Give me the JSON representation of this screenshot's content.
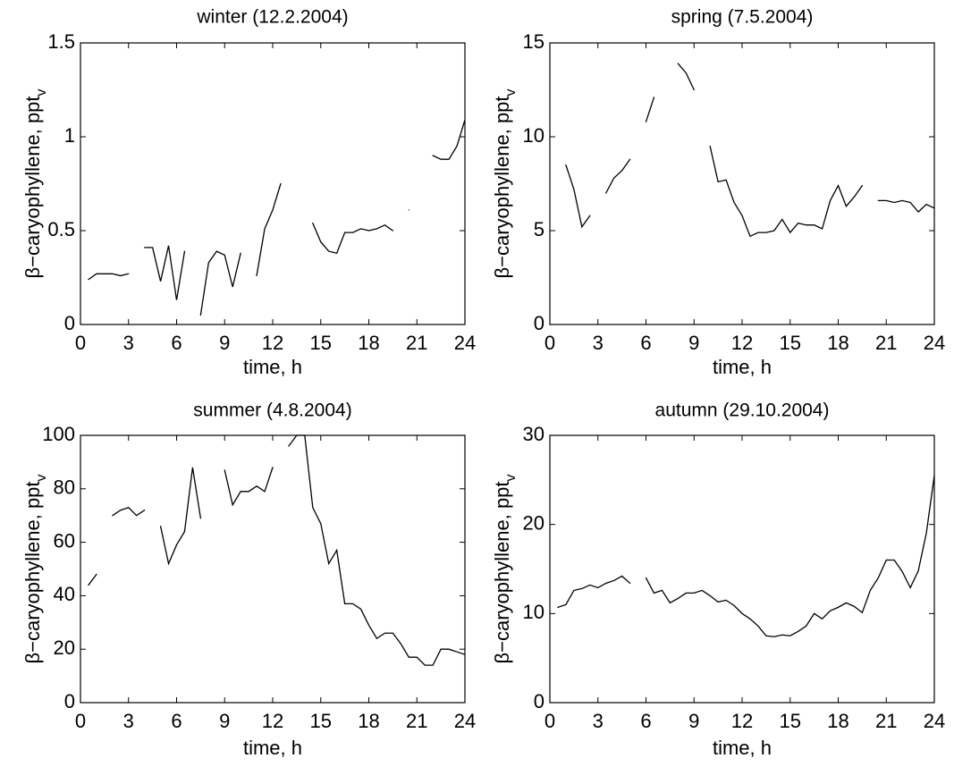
{
  "chart_data": [
    {
      "type": "line",
      "title": "winter (12.2.2004)",
      "x_label": "time, h",
      "y_label": "β−caryophyllene, ppt",
      "y_label_sub": "v",
      "x": [
        0.5,
        1,
        1.5,
        2,
        2.5,
        3,
        3.5,
        4,
        4.5,
        5,
        5.5,
        6,
        6.5,
        7,
        7.5,
        8,
        8.5,
        9,
        9.5,
        10,
        10.5,
        11,
        11.5,
        12,
        12.5,
        13,
        13.5,
        14,
        14.5,
        15,
        15.5,
        16,
        16.5,
        17,
        17.5,
        18,
        18.5,
        19,
        19.5,
        20,
        20.5,
        21,
        21.5,
        22,
        22.5,
        23,
        23.5,
        24
      ],
      "series": [
        {
          "color": "#000000",
          "values": [
            0.24,
            0.27,
            0.27,
            0.27,
            0.26,
            0.27,
            null,
            0.41,
            0.41,
            0.23,
            0.42,
            0.13,
            0.39,
            null,
            0.05,
            0.33,
            0.39,
            0.37,
            0.2,
            0.38,
            null,
            0.26,
            0.51,
            0.61,
            0.75,
            null,
            null,
            null,
            0.54,
            0.44,
            0.39,
            0.38,
            0.49,
            0.49,
            0.51,
            0.5,
            0.51,
            0.53,
            0.5,
            null,
            0.61,
            null,
            null,
            0.9,
            0.88,
            0.88,
            0.95,
            1.09
          ]
        }
      ],
      "xlim": [
        0,
        24
      ],
      "xticks": [
        0,
        3,
        6,
        9,
        12,
        15,
        18,
        21,
        24
      ],
      "ylim": [
        0,
        1.5
      ],
      "yticks": [
        0,
        0.5,
        1,
        1.5
      ]
    },
    {
      "type": "line",
      "title": "spring (7.5.2004)",
      "x_label": "time, h",
      "y_label": "β−caryophyllene, ppt",
      "y_label_sub": "v",
      "x": [
        0.5,
        1,
        1.5,
        2,
        2.5,
        3,
        3.5,
        4,
        4.5,
        5,
        5.5,
        6,
        6.5,
        7,
        7.5,
        8,
        8.5,
        9,
        9.5,
        10,
        10.5,
        11,
        11.5,
        12,
        12.5,
        13,
        13.5,
        14,
        14.5,
        15,
        15.5,
        16,
        16.5,
        17,
        17.5,
        18,
        18.5,
        19,
        19.5,
        20,
        20.5,
        21,
        21.5,
        22,
        22.5,
        23,
        23.5,
        24
      ],
      "series": [
        {
          "color": "#000000",
          "values": [
            null,
            8.5,
            7.2,
            5.2,
            5.8,
            null,
            7.0,
            7.8,
            8.2,
            8.8,
            null,
            10.8,
            12.1,
            null,
            null,
            13.9,
            13.4,
            12.5,
            null,
            9.5,
            7.6,
            7.7,
            6.5,
            5.8,
            4.7,
            4.9,
            4.9,
            5.0,
            5.6,
            4.9,
            5.4,
            5.3,
            5.3,
            5.1,
            6.6,
            7.4,
            6.3,
            6.8,
            7.4,
            null,
            6.6,
            6.6,
            6.5,
            6.6,
            6.5,
            6.0,
            6.4,
            6.2
          ]
        }
      ],
      "xlim": [
        0,
        24
      ],
      "xticks": [
        0,
        3,
        6,
        9,
        12,
        15,
        18,
        21,
        24
      ],
      "ylim": [
        0,
        15
      ],
      "yticks": [
        0,
        5,
        10,
        15
      ]
    },
    {
      "type": "line",
      "title": "summer (4.8.2004)",
      "x_label": "time, h",
      "y_label": "β−caryophyllene, ppt",
      "y_label_sub": "v",
      "x": [
        0.5,
        1,
        1.5,
        2,
        2.5,
        3,
        3.5,
        4,
        4.5,
        5,
        5.5,
        6,
        6.5,
        7,
        7.5,
        8,
        8.5,
        9,
        9.5,
        10,
        10.5,
        11,
        11.5,
        12,
        12.5,
        13,
        13.5,
        14,
        14.5,
        15,
        15.5,
        16,
        16.5,
        17,
        17.5,
        18,
        18.5,
        19,
        19.5,
        20,
        20.5,
        21,
        21.5,
        22,
        22.5,
        23,
        23.5,
        24
      ],
      "series": [
        {
          "color": "#000000",
          "values": [
            44,
            48,
            null,
            70,
            72,
            73,
            70,
            72,
            null,
            66,
            52,
            59,
            64,
            88,
            69,
            null,
            null,
            87,
            74,
            79,
            79,
            81,
            79,
            88,
            null,
            96,
            100,
            100,
            73,
            67,
            52,
            57,
            37,
            37,
            35,
            29,
            24,
            26,
            26,
            22,
            17,
            17,
            14,
            14,
            20,
            20,
            19,
            18
          ]
        }
      ],
      "xlim": [
        0,
        24
      ],
      "xticks": [
        0,
        3,
        6,
        9,
        12,
        15,
        18,
        21,
        24
      ],
      "ylim": [
        0,
        100
      ],
      "yticks": [
        0,
        20,
        40,
        60,
        80,
        100
      ]
    },
    {
      "type": "line",
      "title": "autumn (29.10.2004)",
      "x_label": "time, h",
      "y_label": "β−caryophyllene, ppt",
      "y_label_sub": "v",
      "x": [
        0.5,
        1,
        1.5,
        2,
        2.5,
        3,
        3.5,
        4,
        4.5,
        5,
        5.5,
        6,
        6.5,
        7,
        7.5,
        8,
        8.5,
        9,
        9.5,
        10,
        10.5,
        11,
        11.5,
        12,
        12.5,
        13,
        13.5,
        14,
        14.5,
        15,
        15.5,
        16,
        16.5,
        17,
        17.5,
        18,
        18.5,
        19,
        19.5,
        20,
        20.5,
        21,
        21.5,
        22,
        22.5,
        23,
        23.5,
        24
      ],
      "series": [
        {
          "color": "#000000",
          "values": [
            10.7,
            11.0,
            12.6,
            12.8,
            13.2,
            12.9,
            13.4,
            13.7,
            14.2,
            13.4,
            null,
            14.0,
            12.3,
            12.6,
            11.2,
            11.7,
            12.3,
            12.3,
            12.6,
            12.0,
            11.3,
            11.5,
            10.9,
            10.0,
            9.4,
            8.6,
            7.5,
            7.4,
            7.6,
            7.5,
            8.0,
            8.6,
            10.0,
            9.4,
            10.3,
            10.7,
            11.2,
            10.8,
            10.1,
            12.6,
            14.0,
            16.0,
            16.0,
            14.7,
            12.9,
            14.8,
            19.0,
            25.5
          ]
        }
      ],
      "xlim": [
        0,
        24
      ],
      "xticks": [
        0,
        3,
        6,
        9,
        12,
        15,
        18,
        21,
        24
      ],
      "ylim": [
        0,
        30
      ],
      "yticks": [
        0,
        10,
        20,
        30
      ]
    }
  ]
}
